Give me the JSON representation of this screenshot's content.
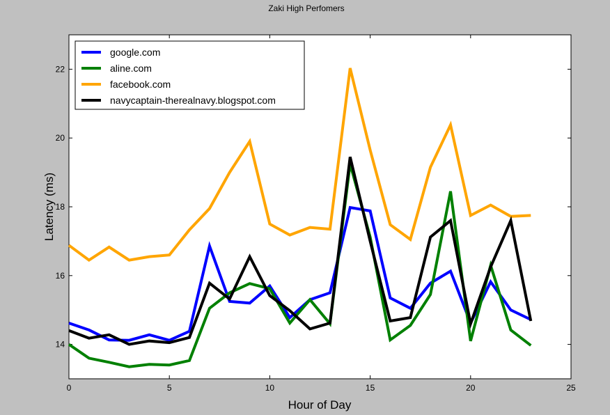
{
  "chart_data": {
    "type": "line",
    "title": "Zaki High Perfomers",
    "xlabel": "Hour of Day",
    "ylabel": "Latency (ms)",
    "xlim": [
      0,
      25
    ],
    "ylim": [
      13,
      23
    ],
    "xticks": [
      0,
      5,
      10,
      15,
      20,
      25
    ],
    "yticks": [
      14,
      16,
      18,
      20,
      22
    ],
    "grid": false,
    "legend_position": "top-left",
    "x": [
      0,
      1,
      2,
      3,
      4,
      5,
      6,
      7,
      8,
      9,
      10,
      11,
      12,
      13,
      14,
      15,
      16,
      17,
      18,
      19,
      20,
      21,
      22,
      23
    ],
    "series": [
      {
        "name": "google.com",
        "color": "#0000ff",
        "values": [
          14.62,
          14.42,
          14.13,
          14.12,
          14.28,
          14.12,
          14.38,
          16.86,
          15.25,
          15.2,
          15.7,
          14.78,
          15.3,
          15.5,
          17.98,
          17.88,
          15.35,
          15.05,
          15.78,
          16.13,
          14.62,
          15.82,
          15.0,
          14.72
        ]
      },
      {
        "name": "aline.com",
        "color": "#008000",
        "values": [
          14.0,
          13.6,
          13.48,
          13.35,
          13.42,
          13.4,
          13.53,
          15.05,
          15.5,
          15.77,
          15.62,
          14.62,
          15.3,
          14.6,
          19.25,
          17.12,
          14.13,
          14.55,
          15.45,
          18.45,
          14.1,
          16.3,
          14.42,
          13.97
        ]
      },
      {
        "name": "facebook.com",
        "color": "#ffa500",
        "values": [
          16.88,
          16.45,
          16.83,
          16.45,
          16.55,
          16.6,
          17.33,
          17.95,
          19.0,
          19.9,
          17.5,
          17.18,
          17.4,
          17.35,
          22.03,
          19.65,
          17.48,
          17.05,
          19.15,
          20.38,
          17.75,
          18.05,
          17.72,
          17.75
        ]
      },
      {
        "name": "navycaptain-therealnavy.blogspot.com",
        "color": "#000000",
        "values": [
          14.4,
          14.18,
          14.28,
          14.0,
          14.1,
          14.05,
          14.2,
          15.78,
          15.32,
          16.55,
          15.42,
          14.98,
          14.45,
          14.62,
          19.45,
          17.0,
          14.68,
          14.78,
          17.12,
          17.6,
          14.6,
          16.25,
          17.6,
          14.68
        ]
      }
    ]
  }
}
